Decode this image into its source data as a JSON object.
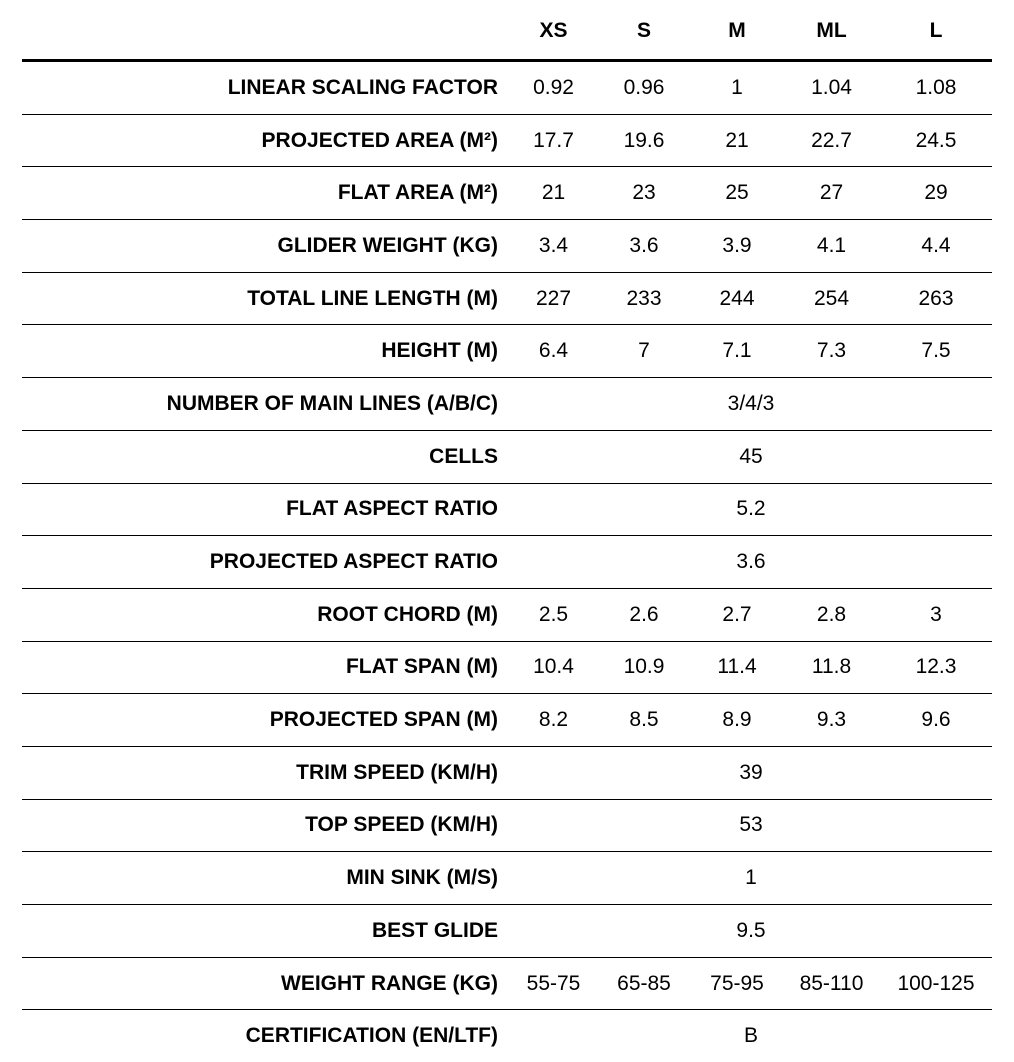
{
  "headers": [
    "",
    "XS",
    "S",
    "M",
    "ML",
    "L"
  ],
  "rows": [
    {
      "label": "LINEAR SCALING FACTOR",
      "values": [
        "0.92",
        "0.96",
        "1",
        "1.04",
        "1.08"
      ]
    },
    {
      "label": "PROJECTED AREA (M²)",
      "values": [
        "17.7",
        "19.6",
        "21",
        "22.7",
        "24.5"
      ]
    },
    {
      "label": "FLAT AREA (M²)",
      "values": [
        "21",
        "23",
        "25",
        "27",
        "29"
      ]
    },
    {
      "label": "GLIDER WEIGHT (KG)",
      "values": [
        "3.4",
        "3.6",
        "3.9",
        "4.1",
        "4.4"
      ]
    },
    {
      "label": "TOTAL LINE LENGTH (M)",
      "values": [
        "227",
        "233",
        "244",
        "254",
        "263"
      ]
    },
    {
      "label": "HEIGHT (M)",
      "values": [
        "6.4",
        "7",
        "7.1",
        "7.3",
        "7.5"
      ]
    },
    {
      "label": "NUMBER OF MAIN LINES (A/B/C)",
      "values": [
        "3/4/3"
      ]
    },
    {
      "label": "CELLS",
      "values": [
        "45"
      ]
    },
    {
      "label": "FLAT ASPECT RATIO",
      "values": [
        "5.2"
      ]
    },
    {
      "label": "PROJECTED ASPECT RATIO",
      "values": [
        "3.6"
      ]
    },
    {
      "label": "ROOT CHORD (M)",
      "values": [
        "2.5",
        "2.6",
        "2.7",
        "2.8",
        "3"
      ]
    },
    {
      "label": "FLAT SPAN (M)",
      "values": [
        "10.4",
        "10.9",
        "11.4",
        "11.8",
        "12.3"
      ]
    },
    {
      "label": "PROJECTED SPAN (M)",
      "values": [
        "8.2",
        "8.5",
        "8.9",
        "9.3",
        "9.6"
      ]
    },
    {
      "label": "TRIM SPEED (KM/H)",
      "values": [
        "39"
      ]
    },
    {
      "label": "TOP SPEED (KM/H)",
      "values": [
        "53"
      ]
    },
    {
      "label": "MIN SINK (M/S)",
      "values": [
        "1"
      ]
    },
    {
      "label": "BEST GLIDE",
      "values": [
        "9.5"
      ]
    },
    {
      "label": "WEIGHT RANGE (KG)",
      "values": [
        "55-75",
        "65-85",
        "75-95",
        "85-110",
        "100-125"
      ]
    },
    {
      "label": "CERTIFICATION (EN/LTF)",
      "values": [
        "B"
      ]
    }
  ]
}
